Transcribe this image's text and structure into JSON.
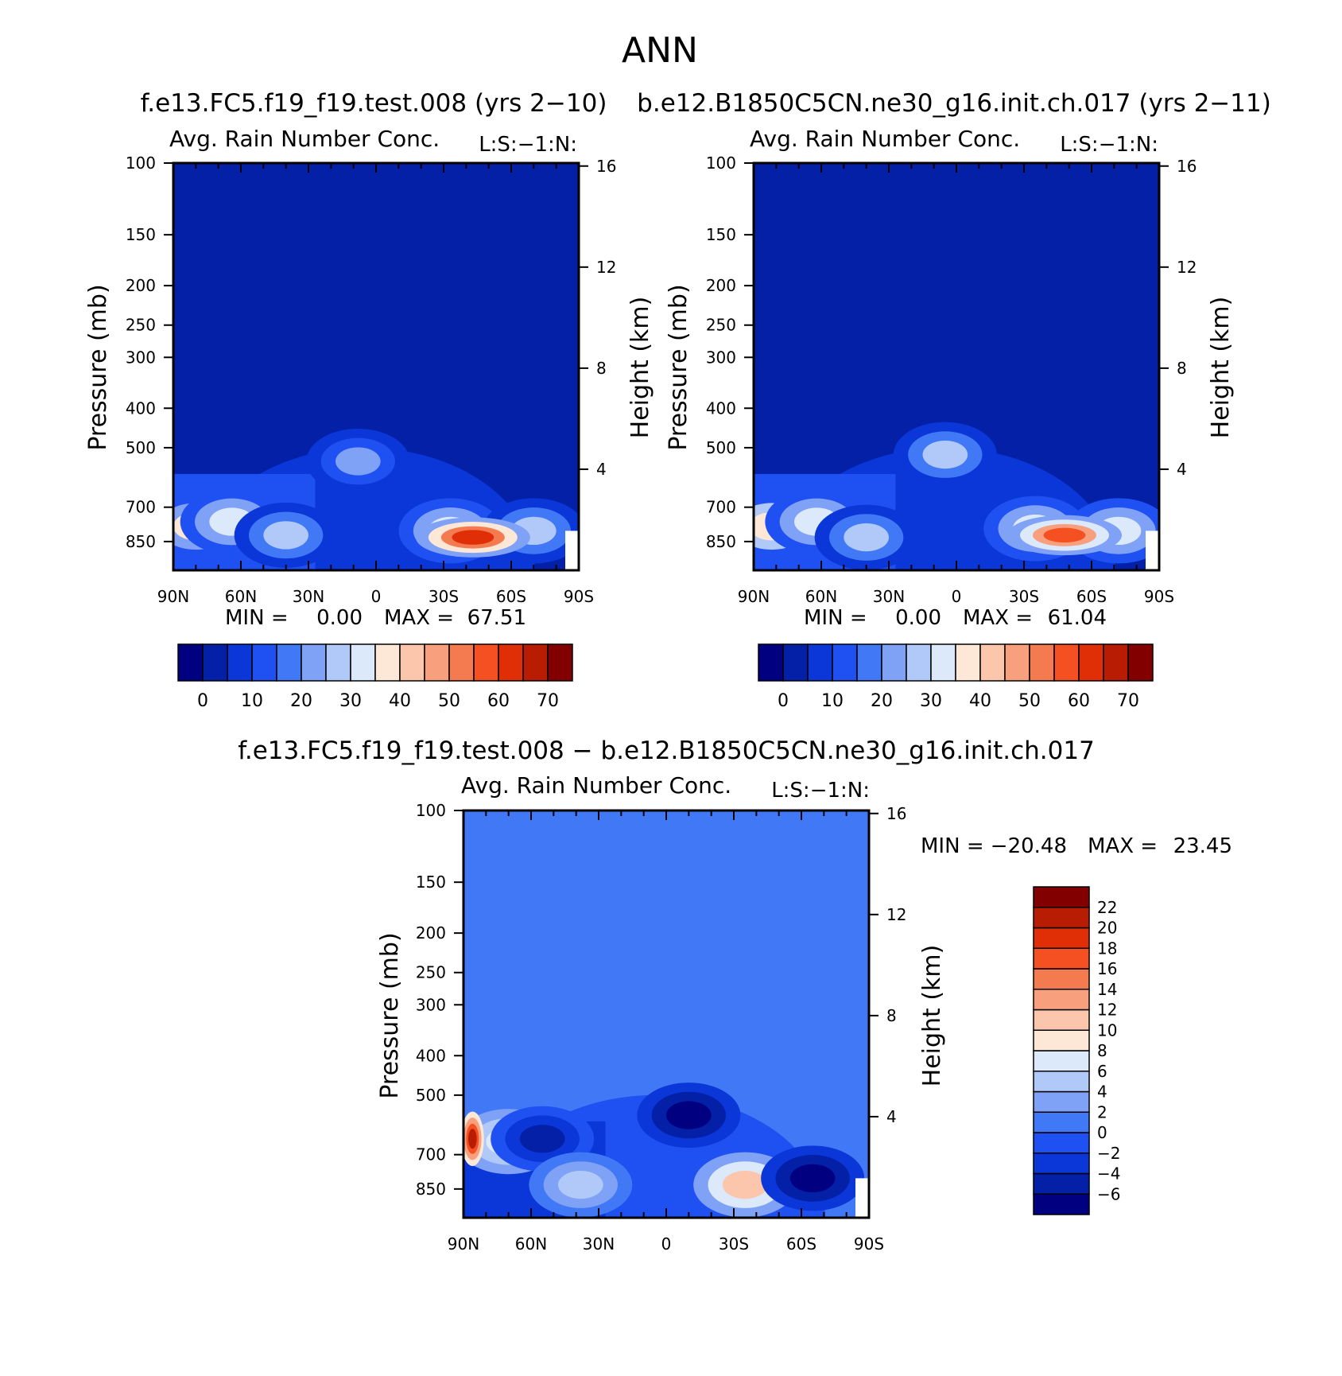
{
  "figure": {
    "title": "ANN"
  },
  "colors": {
    "abs_levels": [
      "#000080",
      "#0320a6",
      "#0b36d8",
      "#1e50f2",
      "#4178f5",
      "#7fa1f6",
      "#b0c9f8",
      "#dbe9fb",
      "#fde7d6",
      "#fbc6ab",
      "#f8a07e",
      "#f47a4f",
      "#f45021",
      "#e02f06",
      "#b81d04",
      "#820000"
    ],
    "diff_levels": [
      "#000080",
      "#0320a6",
      "#0b36d8",
      "#1e50f2",
      "#4178f5",
      "#7fa1f6",
      "#b0c9f8",
      "#dbe9fb",
      "#fde7d6",
      "#fbc6ab",
      "#f8a07e",
      "#f47a4f",
      "#f45021",
      "#e02f06",
      "#b81d04",
      "#820000"
    ]
  },
  "chart_data": [
    {
      "type": "heatmap",
      "case_title": "f.e13.FC5.f19_f19.test.008 (yrs 2−10)",
      "title": "Avg. Rain Number Conc.",
      "annotation": "L:S:−1:N:",
      "ylabel": "Pressure (mb)",
      "y2label": "Height (km)",
      "x_ticks": [
        "90N",
        "60N",
        "30N",
        "0",
        "30S",
        "60S",
        "90S"
      ],
      "y_ticks": [
        "100",
        "150",
        "200",
        "250",
        "300",
        "400",
        "500",
        "700",
        "850"
      ],
      "y_tick_values": [
        100,
        150,
        200,
        250,
        300,
        400,
        500,
        700,
        850
      ],
      "y2_ticks": [
        "16",
        "12",
        "8",
        "4"
      ],
      "y2_tick_values": [
        16,
        12,
        8,
        4
      ],
      "ylim": [
        100,
        1000
      ],
      "xlim": [
        90,
        -90
      ],
      "min_text": "MIN =",
      "min_value": "0.00",
      "max_text": "MAX =",
      "max_value": "67.51",
      "colorbar_labels": [
        "0",
        "10",
        "20",
        "30",
        "40",
        "50",
        "60",
        "70"
      ],
      "colorbar_levels": [
        -5,
        0,
        5,
        10,
        15,
        20,
        25,
        30,
        35,
        40,
        45,
        50,
        55,
        60,
        65,
        70
      ],
      "max_location": {
        "lat": -43,
        "pressure": 830,
        "value": 67.51
      },
      "background_level": 0,
      "features": [
        {
          "lat": 80,
          "pressure": 780,
          "value": 36
        },
        {
          "lat": 64,
          "pressure": 760,
          "value": 30
        },
        {
          "lat": 40,
          "pressure": 820,
          "value": 28
        },
        {
          "lat": 8,
          "pressure": 540,
          "value": 22
        },
        {
          "lat": -33,
          "pressure": 800,
          "value": 34
        },
        {
          "lat": -70,
          "pressure": 800,
          "value": 28
        }
      ]
    },
    {
      "type": "heatmap",
      "case_title": "b.e12.B1850C5CN.ne30_g16.init.ch.017 (yrs 2−11)",
      "title": "Avg. Rain Number Conc.",
      "annotation": "L:S:−1:N:",
      "ylabel": "Pressure (mb)",
      "y2label": "Height (km)",
      "x_ticks": [
        "90N",
        "60N",
        "30N",
        "0",
        "30S",
        "60S",
        "90S"
      ],
      "y_ticks": [
        "100",
        "150",
        "200",
        "250",
        "300",
        "400",
        "500",
        "700",
        "850"
      ],
      "y_tick_values": [
        100,
        150,
        200,
        250,
        300,
        400,
        500,
        700,
        850
      ],
      "y2_ticks": [
        "16",
        "12",
        "8",
        "4"
      ],
      "y2_tick_values": [
        16,
        12,
        8,
        4
      ],
      "ylim": [
        100,
        1000
      ],
      "xlim": [
        90,
        -90
      ],
      "min_text": "MIN =",
      "min_value": "0.00",
      "max_text": "MAX =",
      "max_value": "61.04",
      "colorbar_labels": [
        "0",
        "10",
        "20",
        "30",
        "40",
        "50",
        "60",
        "70"
      ],
      "colorbar_levels": [
        -5,
        0,
        5,
        10,
        15,
        20,
        25,
        30,
        35,
        40,
        45,
        50,
        55,
        60,
        65,
        70
      ],
      "max_location": {
        "lat": -48,
        "pressure": 820,
        "value": 61.04
      },
      "background_level": 0,
      "features": [
        {
          "lat": 82,
          "pressure": 780,
          "value": 38
        },
        {
          "lat": 62,
          "pressure": 760,
          "value": 30
        },
        {
          "lat": 40,
          "pressure": 830,
          "value": 28
        },
        {
          "lat": 5,
          "pressure": 520,
          "value": 26
        },
        {
          "lat": -35,
          "pressure": 790,
          "value": 34
        },
        {
          "lat": -72,
          "pressure": 800,
          "value": 30
        }
      ]
    },
    {
      "type": "heatmap",
      "case_title": "f.e13.FC5.f19_f19.test.008 − b.e12.B1850C5CN.ne30_g16.init.ch.017",
      "title": "Avg. Rain Number Conc.",
      "annotation": "L:S:−1:N:",
      "ylabel": "Pressure (mb)",
      "y2label": "Height (km)",
      "x_ticks": [
        "90N",
        "60N",
        "30N",
        "0",
        "30S",
        "60S",
        "90S"
      ],
      "y_ticks": [
        "100",
        "150",
        "200",
        "250",
        "300",
        "400",
        "500",
        "700",
        "850"
      ],
      "y_tick_values": [
        100,
        150,
        200,
        250,
        300,
        400,
        500,
        700,
        850
      ],
      "y2_ticks": [
        "16",
        "12",
        "8",
        "4"
      ],
      "y2_tick_values": [
        16,
        12,
        8,
        4
      ],
      "ylim": [
        100,
        1000
      ],
      "xlim": [
        90,
        -90
      ],
      "min_text": "MIN =",
      "min_value": "−20.48",
      "max_text": "MAX =",
      "max_value": "23.45",
      "colorbar_labels": [
        "22",
        "20",
        "18",
        "16",
        "14",
        "12",
        "10",
        "8",
        "6",
        "4",
        "2",
        "0",
        "−2",
        "−4",
        "−6"
      ],
      "colorbar_levels": [
        -8,
        -6,
        -4,
        -2,
        0,
        2,
        4,
        6,
        8,
        10,
        12,
        14,
        16,
        18,
        20,
        22
      ],
      "max_location": {
        "lat": 86,
        "pressure": 640,
        "value": 23.45
      },
      "background_level": 0,
      "features": [
        {
          "lat": 70,
          "pressure": 650,
          "value": 6
        },
        {
          "lat": 55,
          "pressure": 640,
          "value": -6
        },
        {
          "lat": -10,
          "pressure": 560,
          "value": -8
        },
        {
          "lat": -35,
          "pressure": 830,
          "value": 10
        },
        {
          "lat": -65,
          "pressure": 800,
          "value": -7
        },
        {
          "lat": 38,
          "pressure": 830,
          "value": 4
        }
      ]
    }
  ]
}
